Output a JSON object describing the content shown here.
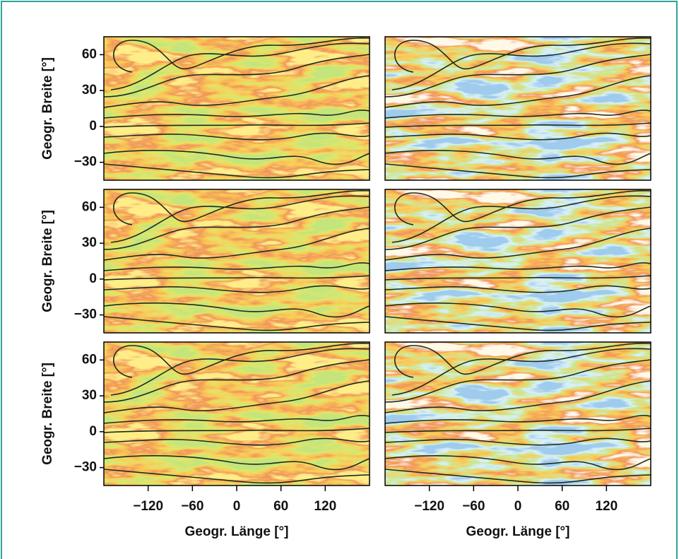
{
  "chart_data": [
    {
      "type": "map",
      "ylabel": "Geogr. Breite [°]",
      "xlim": [
        -180,
        180
      ],
      "ylim": [
        -45,
        75
      ],
      "yticks": [
        60,
        30,
        0,
        {
          "value": -30,
          "label": "−30"
        }
      ],
      "palette": "warm"
    },
    {
      "type": "map",
      "xlim": [
        -180,
        180
      ],
      "ylim": [
        -45,
        75
      ],
      "palette": "cool"
    },
    {
      "type": "map",
      "ylabel": "Geogr. Breite [°]",
      "xlim": [
        -180,
        180
      ],
      "ylim": [
        -45,
        75
      ],
      "yticks": [
        60,
        30,
        0,
        {
          "value": -30,
          "label": "−30"
        }
      ],
      "palette": "warm"
    },
    {
      "type": "map",
      "xlim": [
        -180,
        180
      ],
      "ylim": [
        -45,
        75
      ],
      "palette": "cool"
    },
    {
      "type": "map",
      "ylabel": "Geogr. Breite [°]",
      "xlabel": "Geogr. Länge [°]",
      "xlim": [
        -180,
        180
      ],
      "ylim": [
        -45,
        75
      ],
      "yticks": [
        60,
        30,
        0,
        {
          "value": -30,
          "label": "−30"
        }
      ],
      "xticks": [
        {
          "value": -120,
          "label": "−120"
        },
        {
          "value": -60,
          "label": "−60"
        },
        0,
        60,
        120
      ],
      "palette": "warm"
    },
    {
      "type": "map",
      "xlabel": "Geogr. Länge [°]",
      "xlim": [
        -180,
        180
      ],
      "ylim": [
        -45,
        75
      ],
      "xticks": [
        {
          "value": -120,
          "label": "−120"
        },
        {
          "value": -60,
          "label": "−60"
        },
        0,
        60,
        120
      ],
      "palette": "cool"
    }
  ]
}
